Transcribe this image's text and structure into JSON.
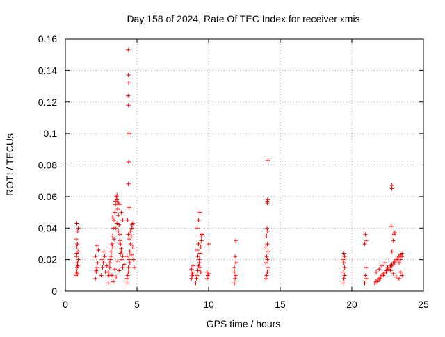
{
  "chart_data": {
    "type": "scatter",
    "title": "Day 158 of 2024, Rate Of TEC Index for receiver xmis",
    "xlabel": "GPS time / hours",
    "ylabel": "ROTI / TECUs",
    "xlim": [
      0,
      25
    ],
    "ylim": [
      0,
      0.16
    ],
    "xticks": [
      0,
      5,
      10,
      15,
      20,
      25
    ],
    "yticks": [
      0,
      0.02,
      0.04,
      0.06,
      0.08,
      0.1,
      0.12,
      0.14,
      0.16
    ],
    "xtick_labels": [
      "0",
      "5",
      "10",
      "15",
      "20",
      "25"
    ],
    "ytick_labels": [
      "0",
      "0.02",
      "0.04",
      "0.06",
      "0.08",
      "0.1",
      "0.12",
      "0.14",
      "0.16"
    ],
    "grid": true,
    "marker": "+",
    "marker_color": "#ff0000",
    "series": [
      {
        "x": [
          0.75,
          0.8,
          0.82,
          0.85,
          0.9,
          0.78,
          0.88,
          0.8,
          0.84,
          0.76,
          0.86,
          0.9,
          0.8,
          0.83,
          0.87,
          0.79,
          2.1,
          2.15,
          2.2,
          2.25,
          2.1,
          2.3,
          2.2,
          2.15,
          2.5,
          2.6,
          2.55,
          2.7,
          2.65,
          2.8,
          2.75,
          2.9,
          3.0,
          3.05,
          3.1,
          3.15,
          3.2,
          3.25,
          3.3,
          3.35,
          3.4,
          3.45,
          3.5,
          3.55,
          3.6,
          3.65,
          3.7,
          3.75,
          3.8,
          3.85,
          3.9,
          3.95,
          4.0,
          3.0,
          3.1,
          3.2,
          3.3,
          3.4,
          3.5,
          3.6,
          3.7,
          3.8,
          3.9,
          4.0,
          4.1,
          3.25,
          3.45,
          3.65,
          3.85,
          3.35,
          3.55,
          3.75,
          4.3,
          4.35,
          4.4,
          4.45,
          4.5,
          4.55,
          4.6,
          4.65,
          4.7,
          4.75,
          4.8,
          4.3,
          4.4,
          4.5,
          4.6,
          4.7,
          4.45,
          4.55,
          4.65,
          4.38,
          4.4,
          4.42,
          4.38,
          4.4,
          4.44,
          4.42,
          4.4,
          4.45,
          4.35,
          4.4,
          4.3,
          3.3,
          3.5,
          3.6,
          3.7,
          3.8,
          3.9,
          4.0,
          8.8,
          8.85,
          8.9,
          8.8,
          8.9,
          8.85,
          9.1,
          9.15,
          9.2,
          9.25,
          9.3,
          9.35,
          9.4,
          9.45,
          9.5,
          9.55,
          9.2,
          9.3,
          9.4,
          9.5,
          9.25,
          9.35,
          9.45,
          9.3,
          9.2,
          9.4,
          9.9,
          9.95,
          10.0,
          9.9,
          10.0,
          11.8,
          11.85,
          11.9,
          11.8,
          11.9,
          11.85,
          11.9,
          11.8,
          14.0,
          14.05,
          14.1,
          14.15,
          14.0,
          14.1,
          14.05,
          14.15,
          14.0,
          14.1,
          14.05,
          14.12,
          14.08,
          14.1,
          14.1,
          14.12,
          14.15,
          19.4,
          19.45,
          19.5,
          19.4,
          19.5,
          19.45,
          19.4,
          19.5,
          19.45,
          20.9,
          21.0,
          20.95,
          21.0,
          20.9,
          21.0,
          20.95,
          21.6,
          21.7,
          21.8,
          21.9,
          22.0,
          22.1,
          22.2,
          22.3,
          22.4,
          22.5,
          22.6,
          22.7,
          22.8,
          22.9,
          23.0,
          23.1,
          23.2,
          23.3,
          23.4,
          23.5,
          21.7,
          21.9,
          22.1,
          22.3,
          22.5,
          22.7,
          22.9,
          23.1,
          23.3,
          23.5,
          21.8,
          22.0,
          22.2,
          22.4,
          22.6,
          22.8,
          23.0,
          23.2,
          23.4,
          22.75,
          22.8,
          22.8,
          22.9,
          22.95,
          23.0,
          22.8,
          23.3,
          23.4,
          23.5,
          23.4
        ],
        "y": [
          0.01,
          0.012,
          0.015,
          0.018,
          0.02,
          0.022,
          0.025,
          0.028,
          0.03,
          0.033,
          0.038,
          0.04,
          0.043,
          0.011,
          0.016,
          0.024,
          0.008,
          0.012,
          0.015,
          0.018,
          0.022,
          0.026,
          0.029,
          0.013,
          0.01,
          0.015,
          0.02,
          0.025,
          0.018,
          0.012,
          0.022,
          0.016,
          0.005,
          0.01,
          0.015,
          0.02,
          0.025,
          0.03,
          0.035,
          0.04,
          0.045,
          0.05,
          0.055,
          0.06,
          0.058,
          0.052,
          0.048,
          0.042,
          0.036,
          0.03,
          0.025,
          0.02,
          0.015,
          0.012,
          0.018,
          0.022,
          0.028,
          0.033,
          0.04,
          0.043,
          0.038,
          0.032,
          0.027,
          0.022,
          0.017,
          0.01,
          0.014,
          0.019,
          0.024,
          0.006,
          0.009,
          0.013,
          0.005,
          0.01,
          0.015,
          0.02,
          0.025,
          0.03,
          0.035,
          0.04,
          0.043,
          0.02,
          0.015,
          0.008,
          0.012,
          0.018,
          0.023,
          0.028,
          0.033,
          0.038,
          0.042,
          0.153,
          0.137,
          0.132,
          0.124,
          0.118,
          0.1,
          0.082,
          0.068,
          0.053,
          0.045,
          0.036,
          0.022,
          0.047,
          0.057,
          0.061,
          0.056,
          0.055,
          0.05,
          0.045,
          0.008,
          0.01,
          0.012,
          0.014,
          0.016,
          0.011,
          0.005,
          0.008,
          0.01,
          0.013,
          0.016,
          0.02,
          0.024,
          0.028,
          0.032,
          0.036,
          0.04,
          0.045,
          0.05,
          0.035,
          0.022,
          0.018,
          0.012,
          0.03,
          0.026,
          0.015,
          0.008,
          0.01,
          0.03,
          0.012,
          0.011,
          0.005,
          0.008,
          0.01,
          0.015,
          0.018,
          0.022,
          0.032,
          0.012,
          0.008,
          0.01,
          0.012,
          0.015,
          0.018,
          0.02,
          0.022,
          0.025,
          0.028,
          0.03,
          0.035,
          0.038,
          0.04,
          0.057,
          0.056,
          0.058,
          0.083,
          0.005,
          0.008,
          0.01,
          0.012,
          0.015,
          0.018,
          0.02,
          0.022,
          0.024,
          0.005,
          0.008,
          0.01,
          0.015,
          0.03,
          0.032,
          0.036,
          0.005,
          0.006,
          0.007,
          0.008,
          0.009,
          0.01,
          0.011,
          0.012,
          0.013,
          0.014,
          0.015,
          0.016,
          0.017,
          0.018,
          0.019,
          0.02,
          0.021,
          0.022,
          0.023,
          0.024,
          0.012,
          0.014,
          0.016,
          0.018,
          0.015,
          0.013,
          0.011,
          0.009,
          0.008,
          0.01,
          0.006,
          0.008,
          0.01,
          0.012,
          0.014,
          0.016,
          0.018,
          0.02,
          0.022,
          0.041,
          0.065,
          0.067,
          0.032,
          0.036,
          0.037,
          0.025,
          0.018,
          0.02,
          0.022,
          0.012
        ]
      }
    ]
  }
}
